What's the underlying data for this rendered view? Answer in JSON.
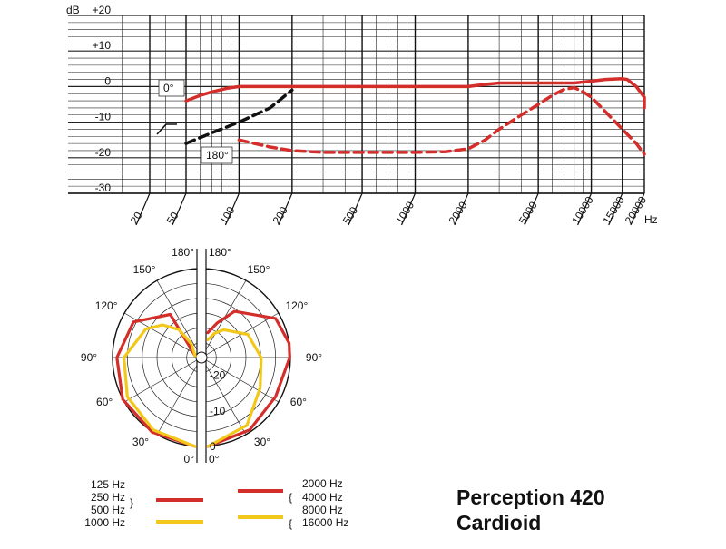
{
  "title": {
    "line1": "Perception 420",
    "line2": "Cardioid"
  },
  "chart_data": [
    {
      "type": "line",
      "title": "",
      "x_scale": "log",
      "xlim": [
        20,
        20000
      ],
      "ylim": [
        -30,
        20
      ],
      "y_unit_label": "dB",
      "x_unit_label": "Hz",
      "x_ticks": [
        20,
        50,
        100,
        200,
        500,
        1000,
        2000,
        5000,
        10000,
        15000,
        20000
      ],
      "x_tick_labels": [
        "20",
        "50",
        "100",
        "200",
        "500",
        "1000",
        "2000",
        "5000",
        "10000",
        "15000",
        "20000"
      ],
      "y_ticks": [
        20,
        10,
        0,
        -10,
        -20,
        -30
      ],
      "y_tick_labels": [
        "+20",
        "+10",
        "0",
        "-10",
        "-20",
        "-30"
      ],
      "grid": true,
      "annotations": [
        "0°",
        "180°"
      ],
      "series": [
        {
          "name": "0°",
          "color": "#d42e2a",
          "style": "solid",
          "points": [
            [
              50,
              -4
            ],
            [
              60,
              -2.5
            ],
            [
              70,
              -1.5
            ],
            [
              85,
              -0.5
            ],
            [
              100,
              0
            ],
            [
              200,
              0
            ],
            [
              500,
              0
            ],
            [
              1000,
              0
            ],
            [
              2000,
              0
            ],
            [
              2500,
              0.6
            ],
            [
              3000,
              1
            ],
            [
              5000,
              1
            ],
            [
              8000,
              1
            ],
            [
              10000,
              1.5
            ],
            [
              12000,
              2
            ],
            [
              15000,
              2.2
            ],
            [
              16000,
              2
            ],
            [
              18000,
              0
            ],
            [
              20000,
              -3
            ],
            [
              23000,
              -6
            ]
          ]
        },
        {
          "name": "180°",
          "color": "#d42e2a",
          "style": "dashed",
          "points": [
            [
              100,
              -15
            ],
            [
              150,
              -17
            ],
            [
              200,
              -18
            ],
            [
              300,
              -18.5
            ],
            [
              500,
              -18.5
            ],
            [
              1000,
              -18.5
            ],
            [
              1500,
              -18.3
            ],
            [
              2000,
              -17.5
            ],
            [
              2500,
              -15
            ],
            [
              3000,
              -12
            ],
            [
              4000,
              -8
            ],
            [
              5000,
              -5
            ],
            [
              6000,
              -2.5
            ],
            [
              7000,
              -0.8
            ],
            [
              8000,
              -0.3
            ],
            [
              9000,
              -1.5
            ],
            [
              10000,
              -3
            ],
            [
              12000,
              -7
            ],
            [
              15000,
              -12
            ],
            [
              18000,
              -16
            ],
            [
              20000,
              -19
            ]
          ]
        },
        {
          "name": "",
          "color": "#111111",
          "style": "dashed",
          "points": [
            [
              50,
              -16
            ],
            [
              70,
              -13
            ],
            [
              100,
              -10
            ],
            [
              150,
              -6
            ],
            [
              200,
              -1
            ]
          ]
        }
      ]
    },
    {
      "type": "polar",
      "title": "",
      "r_range_db": [
        -25,
        0
      ],
      "r_ticks": [
        0,
        -10,
        -20
      ],
      "r_tick_labels": [
        "0",
        "-10",
        "-20"
      ],
      "angle_labels": [
        "0°",
        "30°",
        "60°",
        "90°",
        "120°",
        "150°",
        "180°"
      ],
      "series": [
        {
          "name": "125 Hz, 250 Hz, 500 Hz",
          "side": "left",
          "color": "#d42e2a",
          "points": [
            [
              0,
              0
            ],
            [
              30,
              -0.8
            ],
            [
              60,
              -1.5
            ],
            [
              90,
              -3
            ],
            [
              120,
              -5
            ],
            [
              150,
              -11
            ],
            [
              180,
              -25
            ]
          ]
        },
        {
          "name": "1000 Hz",
          "side": "left",
          "color": "#f2c81a",
          "points": [
            [
              0,
              0
            ],
            [
              30,
              -1.5
            ],
            [
              60,
              -3
            ],
            [
              90,
              -5
            ],
            [
              120,
              -9
            ],
            [
              135,
              -12
            ],
            [
              150,
              -16
            ],
            [
              165,
              -21
            ],
            [
              180,
              -25
            ]
          ]
        },
        {
          "name": "2000 Hz, 4000 Hz",
          "side": "right",
          "color": "#d42e2a",
          "points": [
            [
              0,
              0
            ],
            [
              30,
              -1.5
            ],
            [
              60,
              -3
            ],
            [
              90,
              -2
            ],
            [
              100,
              -1.8
            ],
            [
              120,
              -3
            ],
            [
              150,
              -10
            ],
            [
              165,
              -15
            ],
            [
              180,
              -18
            ]
          ]
        },
        {
          "name": "8000 Hz, 16000 Hz",
          "side": "right",
          "color": "#f2c81a",
          "points": [
            [
              0,
              0
            ],
            [
              30,
              -3
            ],
            [
              60,
              -8
            ],
            [
              90,
              -10
            ],
            [
              120,
              -12
            ],
            [
              150,
              -16
            ],
            [
              165,
              -18
            ],
            [
              180,
              -20
            ]
          ]
        }
      ]
    }
  ],
  "legend": {
    "left_labels": [
      "125 Hz",
      "250 Hz",
      "500 Hz",
      "1000 Hz"
    ],
    "right_labels": [
      "2000 Hz",
      "4000 Hz",
      "8000 Hz",
      "16000 Hz"
    ],
    "colors": {
      "red": "#d42e2a",
      "yellow": "#f2c81a",
      "black": "#111111"
    }
  }
}
